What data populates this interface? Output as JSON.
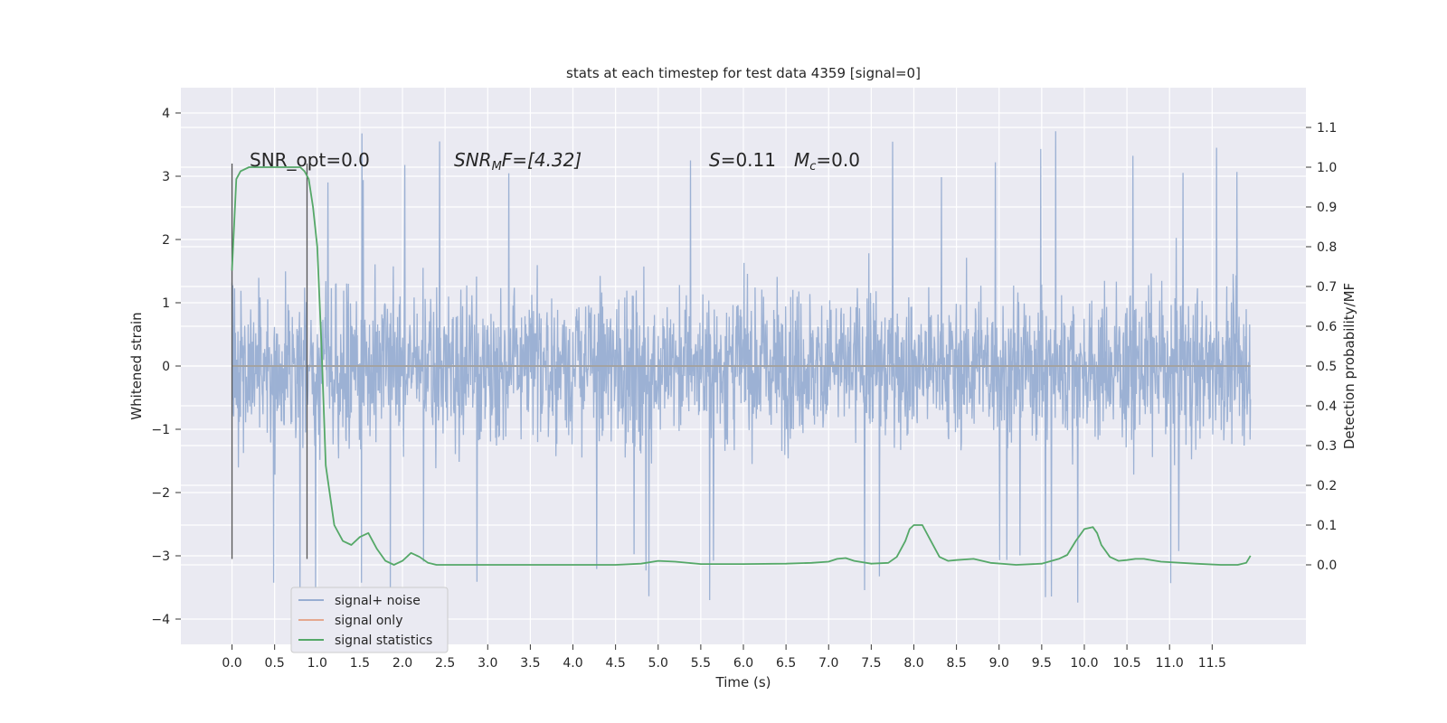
{
  "chart_data": {
    "type": "line",
    "title": "stats at each timestep for test data 4359 [signal=0]",
    "xlabel": "Time (s)",
    "ylabel": "Whitened strain",
    "ylabel_right": "Detection probability/MF",
    "xlim": [
      -0.6,
      12.6
    ],
    "ylim": [
      -4.4,
      4.4
    ],
    "ylim_right": [
      -0.2,
      1.2
    ],
    "x_ticks": [
      "0.0",
      "0.5",
      "1.0",
      "1.5",
      "2.0",
      "2.5",
      "3.0",
      "3.5",
      "4.0",
      "4.5",
      "5.0",
      "5.5",
      "6.0",
      "6.5",
      "7.0",
      "7.5",
      "8.0",
      "8.5",
      "9.0",
      "9.5",
      "10.0",
      "10.5",
      "11.0",
      "11.5"
    ],
    "y_ticks": [
      "4",
      "3",
      "2",
      "1",
      "0",
      "−1",
      "−2",
      "−3",
      "−4"
    ],
    "y_ticks_right": [
      "1.1",
      "1.0",
      "0.9",
      "0.8",
      "0.7",
      "0.6",
      "0.5",
      "0.4",
      "0.3",
      "0.2",
      "0.1",
      "0.0"
    ],
    "grid": true,
    "legend_position": "lower-left",
    "colors": {
      "background": "#eaeaf2",
      "grid": "#ffffff",
      "noise": "#98aed2",
      "signal": "#e5a88f",
      "statistics": "#55a868",
      "markers": "#555555"
    },
    "annotations": {
      "snr_opt": "SNR_opt=0.0",
      "snr_mf_name": "SNR",
      "snr_mf_sub": "M",
      "snr_mf_rest": "F=[4.32]",
      "s_name": "S",
      "s_rest": "=0.11",
      "mc_name": "M",
      "mc_sub": "c",
      "mc_rest": "=0.0"
    },
    "vertical_markers": [
      {
        "x": 0.0,
        "y_range": [
          -3.05,
          3.2
        ]
      },
      {
        "x": 0.88,
        "y_range": [
          -3.05,
          3.2
        ]
      }
    ],
    "noise_envelope": {
      "x_range": [
        0.0,
        11.95
      ],
      "typical_amplitude": 1.8,
      "peak_max": 4.1,
      "trough_min": -3.95
    },
    "series": [
      {
        "name": "signal+ noise",
        "kind": "strain",
        "axis": "left"
      },
      {
        "name": "signal only",
        "kind": "strain",
        "axis": "left",
        "values_note": "flat at 0"
      },
      {
        "name": "signal statistics",
        "kind": "probability",
        "axis": "right",
        "x": [
          0.0,
          0.05,
          0.1,
          0.2,
          0.3,
          0.4,
          0.5,
          0.6,
          0.7,
          0.8,
          0.85,
          0.9,
          0.95,
          1.0,
          1.05,
          1.1,
          1.2,
          1.3,
          1.4,
          1.5,
          1.6,
          1.7,
          1.8,
          1.9,
          2.0,
          2.1,
          2.2,
          2.3,
          2.4,
          2.5,
          3.0,
          3.5,
          4.0,
          4.5,
          4.8,
          5.0,
          5.2,
          5.5,
          6.0,
          6.5,
          6.8,
          7.0,
          7.1,
          7.2,
          7.3,
          7.5,
          7.7,
          7.8,
          7.9,
          7.95,
          8.0,
          8.1,
          8.2,
          8.3,
          8.4,
          8.5,
          8.7,
          8.9,
          9.2,
          9.5,
          9.7,
          9.8,
          9.9,
          10.0,
          10.1,
          10.15,
          10.2,
          10.3,
          10.4,
          10.5,
          10.6,
          10.7,
          10.9,
          11.3,
          11.6,
          11.8,
          11.9,
          11.95
        ],
        "values": [
          0.74,
          0.97,
          0.99,
          1.0,
          1.0,
          1.0,
          1.0,
          1.0,
          1.0,
          1.0,
          0.99,
          0.97,
          0.9,
          0.8,
          0.55,
          0.25,
          0.1,
          0.06,
          0.05,
          0.07,
          0.08,
          0.04,
          0.01,
          0.0,
          0.01,
          0.03,
          0.02,
          0.005,
          0.0,
          0.0,
          0.0,
          0.0,
          0.0,
          0.0,
          0.003,
          0.01,
          0.008,
          0.002,
          0.002,
          0.003,
          0.005,
          0.008,
          0.015,
          0.017,
          0.01,
          0.003,
          0.005,
          0.02,
          0.06,
          0.09,
          0.1,
          0.1,
          0.06,
          0.02,
          0.01,
          0.012,
          0.015,
          0.005,
          0.0,
          0.003,
          0.015,
          0.025,
          0.06,
          0.09,
          0.095,
          0.08,
          0.05,
          0.02,
          0.01,
          0.012,
          0.015,
          0.015,
          0.008,
          0.003,
          0.0,
          0.0,
          0.005,
          0.023
        ]
      }
    ]
  }
}
